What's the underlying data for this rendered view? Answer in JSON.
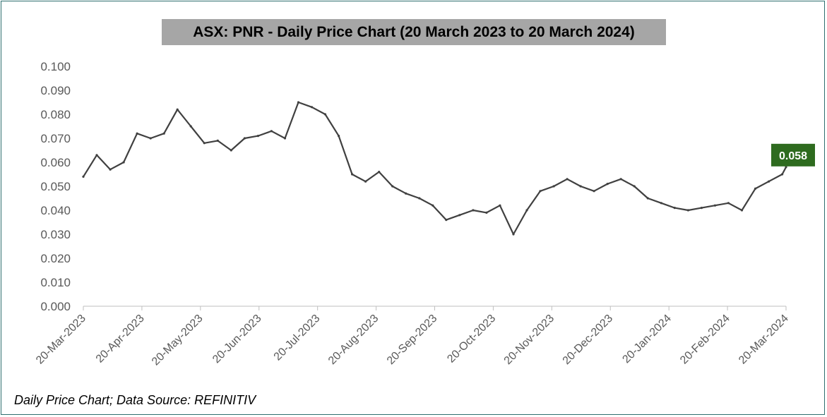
{
  "caption": "Daily Price Chart; Data Source: REFINITIV",
  "colors": {
    "title_bg": "#a6a6a6",
    "series": "#404040",
    "last_label_bg": "#2e6b1f",
    "axis": "#bfbfbf",
    "tick_text": "#595959"
  },
  "chart_data": {
    "type": "line",
    "title": "ASX: PNR - Daily Price Chart (20 March 2023 to 20 March 2024)",
    "xlabel": "",
    "ylabel": "",
    "ylim": [
      0,
      0.1
    ],
    "y_ticks": [
      "0.000",
      "0.010",
      "0.020",
      "0.030",
      "0.040",
      "0.050",
      "0.060",
      "0.070",
      "0.080",
      "0.090",
      "0.100"
    ],
    "x_ticks": [
      "20-Mar-2023",
      "20-Apr-2023",
      "20-May-2023",
      "20-Jun-2023",
      "20-Jul-2023",
      "20-Aug-2023",
      "20-Sep-2023",
      "20-Oct-2023",
      "20-Nov-2023",
      "20-Dec-2023",
      "20-Jan-2024",
      "20-Feb-2024",
      "20-Mar-2024"
    ],
    "grid": false,
    "last_value_label": "0.058",
    "series": [
      {
        "x": [
          "2023-03-20",
          "2023-03-27",
          "2023-04-03",
          "2023-04-10",
          "2023-04-17",
          "2023-04-24",
          "2023-05-01",
          "2023-05-08",
          "2023-05-15",
          "2023-05-22",
          "2023-05-29",
          "2023-06-05",
          "2023-06-12",
          "2023-06-19",
          "2023-06-26",
          "2023-07-03",
          "2023-07-10",
          "2023-07-17",
          "2023-07-24",
          "2023-07-31",
          "2023-08-07",
          "2023-08-14",
          "2023-08-21",
          "2023-08-28",
          "2023-09-04",
          "2023-09-11",
          "2023-09-18",
          "2023-09-25",
          "2023-10-02",
          "2023-10-09",
          "2023-10-16",
          "2023-10-23",
          "2023-10-30",
          "2023-11-06",
          "2023-11-13",
          "2023-11-20",
          "2023-11-27",
          "2023-12-04",
          "2023-12-11",
          "2023-12-18",
          "2023-12-25",
          "2024-01-01",
          "2024-01-08",
          "2024-01-15",
          "2024-01-22",
          "2024-01-29",
          "2024-02-05",
          "2024-02-12",
          "2024-02-19",
          "2024-02-26",
          "2024-03-04",
          "2024-03-11",
          "2024-03-18",
          "2024-03-20"
        ],
        "values": [
          0.054,
          0.063,
          0.057,
          0.06,
          0.072,
          0.07,
          0.072,
          0.082,
          0.075,
          0.068,
          0.069,
          0.065,
          0.07,
          0.071,
          0.073,
          0.07,
          0.085,
          0.083,
          0.08,
          0.071,
          0.055,
          0.052,
          0.056,
          0.05,
          0.047,
          0.045,
          0.042,
          0.036,
          0.038,
          0.04,
          0.039,
          0.042,
          0.03,
          0.04,
          0.048,
          0.05,
          0.053,
          0.05,
          0.048,
          0.051,
          0.053,
          0.05,
          0.045,
          0.043,
          0.041,
          0.04,
          0.041,
          0.042,
          0.043,
          0.04,
          0.049,
          0.052,
          0.055,
          0.058
        ]
      }
    ]
  }
}
